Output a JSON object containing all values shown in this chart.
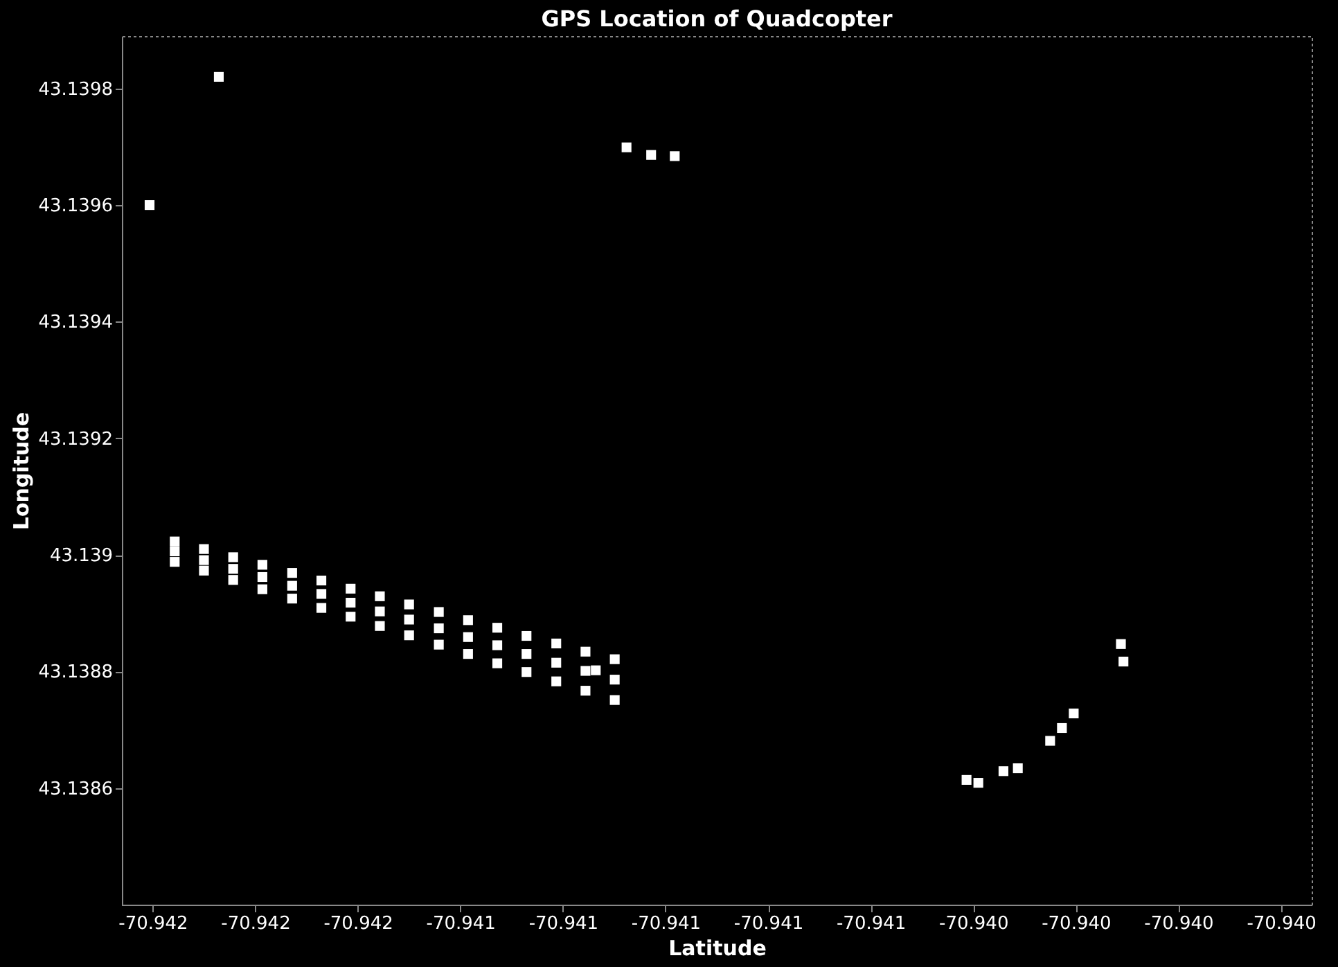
{
  "chart_data": {
    "type": "scatter",
    "title": "GPS Location of Quadcopter",
    "xlabel": "Latitude",
    "ylabel": "Longitude",
    "xlim": [
      -70.94206,
      -70.93974
    ],
    "ylim": [
      43.1384,
      43.13989
    ],
    "xticks": [
      {
        "value": -70.942,
        "label": "-70.942"
      },
      {
        "value": -70.9418,
        "label": "-70.942"
      },
      {
        "value": -70.9416,
        "label": "-70.942"
      },
      {
        "value": -70.9414,
        "label": "-70.941"
      },
      {
        "value": -70.9412,
        "label": "-70.941"
      },
      {
        "value": -70.941,
        "label": "-70.941"
      },
      {
        "value": -70.9408,
        "label": "-70.941"
      },
      {
        "value": -70.9406,
        "label": "-70.941"
      },
      {
        "value": -70.9404,
        "label": "-70.940"
      },
      {
        "value": -70.9402,
        "label": "-70.940"
      },
      {
        "value": -70.94,
        "label": "-70.940"
      },
      {
        "value": -70.9398,
        "label": "-70.940"
      }
    ],
    "yticks": [
      43.1386,
      43.1388,
      {
        "value": 43.139,
        "label": "43.139"
      },
      43.1392,
      43.1394,
      43.1396,
      43.1398
    ],
    "grid": false,
    "marker": "square",
    "series": [
      {
        "color": "#ffffff",
        "x": [
          -70.941957,
          -70.941957,
          -70.941957,
          -70.9419,
          -70.9419,
          -70.9419,
          -70.941843,
          -70.941843,
          -70.941843,
          -70.941786,
          -70.941786,
          -70.941786,
          -70.941728,
          -70.941728,
          -70.941728,
          -70.941671,
          -70.941671,
          -70.941671,
          -70.941614,
          -70.941614,
          -70.941614,
          -70.941557,
          -70.941557,
          -70.941557,
          -70.9415,
          -70.9415,
          -70.9415,
          -70.941442,
          -70.941442,
          -70.941442,
          -70.941385,
          -70.941385,
          -70.941385,
          -70.941328,
          -70.941328,
          -70.941328,
          -70.941271,
          -70.941271,
          -70.941271,
          -70.941213,
          -70.941213,
          -70.941213,
          -70.941156,
          -70.941156,
          -70.941156,
          -70.941099,
          -70.941099,
          -70.941099,
          -70.942006,
          -70.941076,
          -70.941028,
          -70.940982,
          -70.941136,
          -70.940112,
          -70.940107,
          -70.940204,
          -70.940227,
          -70.94025,
          -70.940313,
          -70.940341,
          -70.940413,
          -70.94039,
          -70.941871
        ],
        "values": [
          43.139023,
          43.139006,
          43.138988,
          43.13901,
          43.138991,
          43.138973,
          43.138996,
          43.138976,
          43.138957,
          43.138983,
          43.138962,
          43.138941,
          43.138969,
          43.138947,
          43.138925,
          43.138956,
          43.138933,
          43.138909,
          43.138942,
          43.138918,
          43.138894,
          43.138929,
          43.138903,
          43.138878,
          43.138915,
          43.138889,
          43.138862,
          43.138902,
          43.138874,
          43.138846,
          43.138888,
          43.138859,
          43.13883,
          43.138875,
          43.138845,
          43.138814,
          43.138861,
          43.13883,
          43.138799,
          43.138848,
          43.138815,
          43.138783,
          43.138834,
          43.138801,
          43.138767,
          43.138821,
          43.138786,
          43.138751,
          43.1396,
          43.139699,
          43.139686,
          43.139684,
          43.138802,
          43.138847,
          43.138817,
          43.138728,
          43.138703,
          43.138681,
          43.138634,
          43.138629,
          43.138614,
          43.138609,
          43.13982
        ]
      }
    ]
  }
}
